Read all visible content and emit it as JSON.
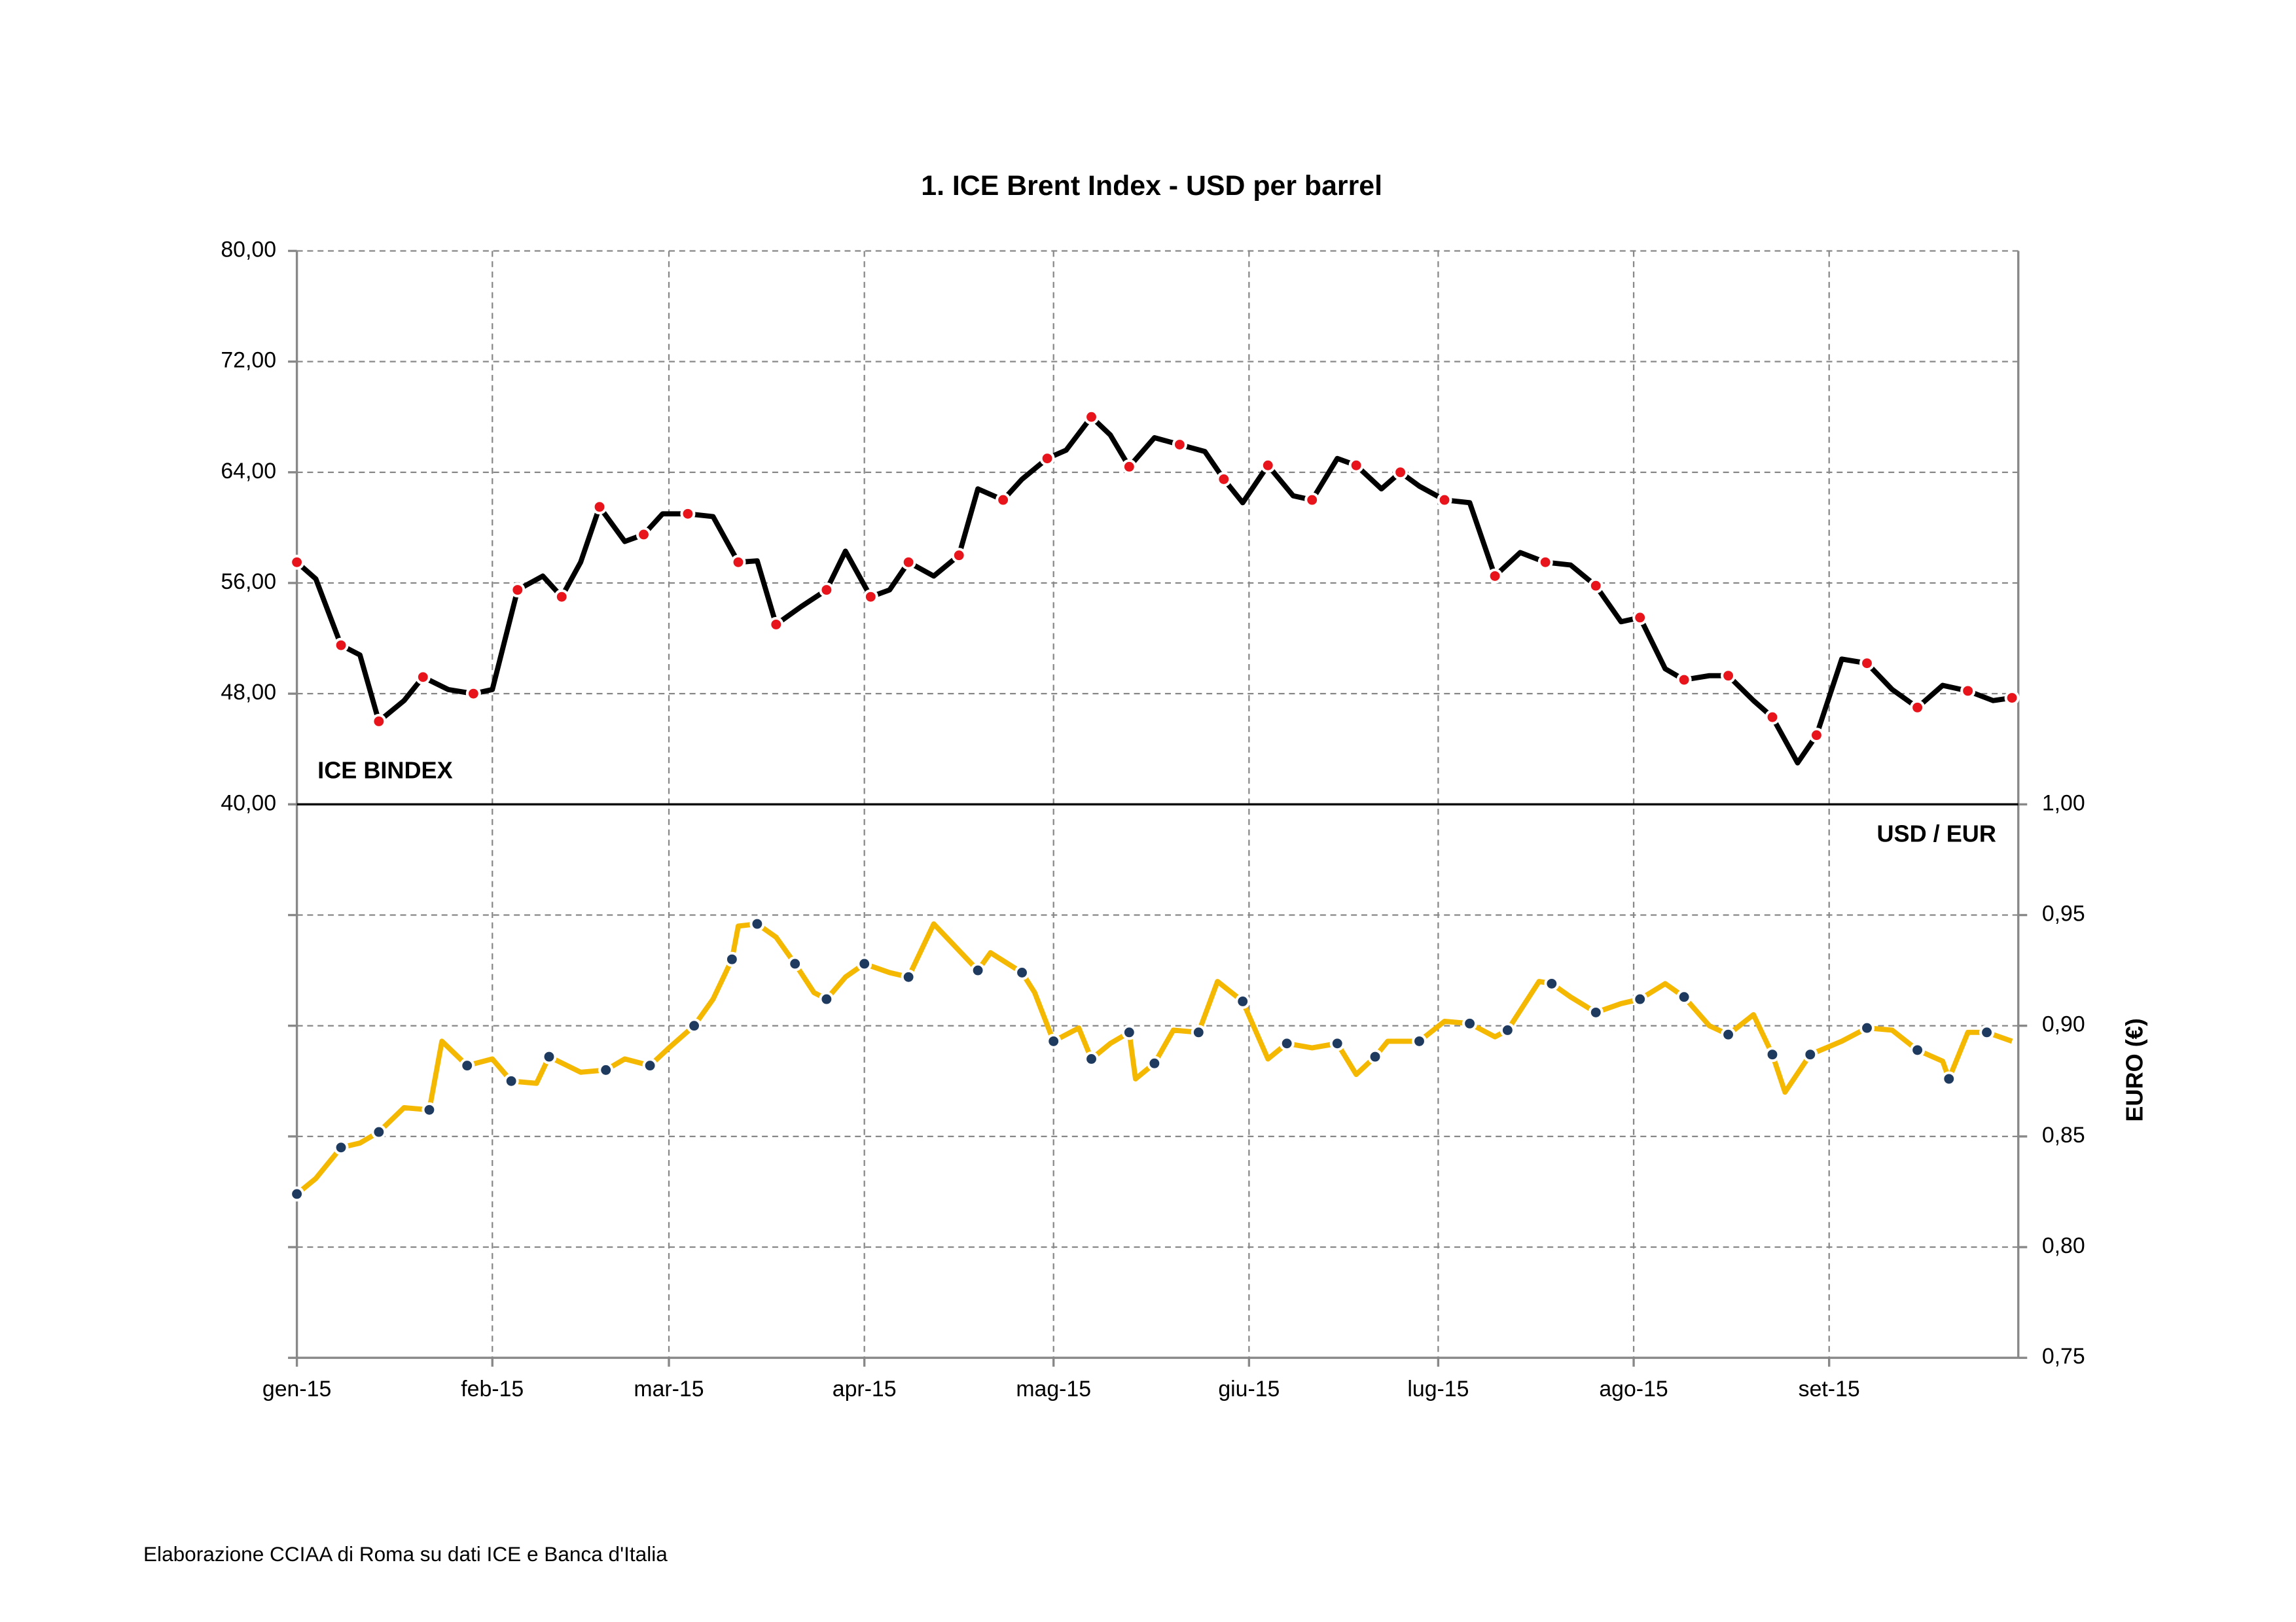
{
  "chart_data": [
    {
      "type": "line",
      "title": "1. ICE Brent Index - USD per barrel",
      "source": "Elaborazione CCIAA di Roma su dati ICE e Banca d'Italia",
      "xlim": [
        0,
        273
      ],
      "ylim": [
        40,
        80
      ],
      "yticks": [
        {
          "value": 40,
          "label": "40,00"
        },
        {
          "value": 48,
          "label": "48,00"
        },
        {
          "value": 56,
          "label": "56,00"
        },
        {
          "value": 64,
          "label": "64,00"
        },
        {
          "value": 72,
          "label": "72,00"
        },
        {
          "value": 80,
          "label": "80,00"
        }
      ],
      "grid": true,
      "series": [
        {
          "name": "ICE BINDEX",
          "color": "#000000",
          "marker_color": "#e8141b",
          "x": [
            0,
            3,
            7,
            10,
            13,
            17,
            20,
            24,
            28,
            31,
            35,
            39,
            42,
            45,
            48,
            52,
            55,
            58,
            62,
            66,
            70,
            73,
            76,
            80,
            84,
            87,
            91,
            94,
            97,
            101,
            105,
            108,
            112,
            115,
            119,
            122,
            126,
            129,
            132,
            136,
            140,
            144,
            147,
            150,
            154,
            158,
            161,
            165,
            168,
            172,
            175,
            178,
            182,
            186,
            190,
            194,
            198,
            202,
            206,
            210,
            213,
            217,
            220,
            224,
            227,
            231,
            234,
            238,
            241,
            245,
            249,
            253,
            257,
            261,
            265,
            269,
            272
          ],
          "values": [
            57.5,
            56.3,
            51.5,
            50.8,
            46,
            47.5,
            49.2,
            48.3,
            48,
            48.3,
            55.5,
            56.5,
            55,
            57.5,
            61.5,
            59,
            59.5,
            61,
            61,
            60.8,
            57.5,
            57.6,
            53,
            54.3,
            55.5,
            58.3,
            55,
            55.5,
            57.5,
            56.5,
            58,
            62.8,
            62,
            63.5,
            65,
            65.6,
            68,
            66.7,
            64.4,
            66.5,
            66,
            65.5,
            63.5,
            61.8,
            64.5,
            62.3,
            62,
            65,
            64.5,
            62.8,
            64,
            63,
            62,
            61.8,
            56.5,
            58.2,
            57.5,
            57.3,
            55.8,
            53.2,
            53.5,
            49.8,
            49,
            49.3,
            49.3,
            47.5,
            46.3,
            43,
            45,
            50.5,
            50.2,
            48.3,
            47,
            48.6,
            48.2,
            47.5,
            47.7
          ]
        }
      ]
    },
    {
      "type": "line",
      "xlim": [
        0,
        273
      ],
      "xticks": [
        {
          "value": 0,
          "label": "gen-15"
        },
        {
          "value": 31,
          "label": "feb-15"
        },
        {
          "value": 59,
          "label": "mar-15"
        },
        {
          "value": 90,
          "label": "apr-15"
        },
        {
          "value": 120,
          "label": "mag-15"
        },
        {
          "value": 151,
          "label": "giu-15"
        },
        {
          "value": 181,
          "label": "lug-15"
        },
        {
          "value": 212,
          "label": "ago-15"
        },
        {
          "value": 243,
          "label": "set-15"
        }
      ],
      "y2lim": [
        0.75,
        1.0
      ],
      "y2ticks": [
        {
          "value": 0.75,
          "label": "0,75"
        },
        {
          "value": 0.8,
          "label": "0,80"
        },
        {
          "value": 0.85,
          "label": "0,85"
        },
        {
          "value": 0.9,
          "label": "0,90"
        },
        {
          "value": 0.95,
          "label": "0,95"
        },
        {
          "value": 1.0,
          "label": "1,00"
        }
      ],
      "y2label": "EURO  (€)",
      "grid": true,
      "series": [
        {
          "name": "USD / EUR",
          "axis": "y2",
          "color": "#f5b800",
          "marker_color": "#1f3a5f",
          "x": [
            0,
            3,
            7,
            10,
            13,
            17,
            21,
            23,
            27,
            31,
            34,
            38,
            40,
            45,
            49,
            52,
            56,
            59,
            63,
            66,
            69,
            70,
            73,
            76,
            79,
            82,
            84,
            87,
            90,
            94,
            97,
            101,
            108,
            110,
            115,
            117,
            120,
            124,
            126,
            129,
            132,
            133,
            136,
            139,
            143,
            146,
            150,
            154,
            157,
            161,
            165,
            168,
            171,
            173,
            178,
            182,
            186,
            190,
            192,
            197,
            199,
            202,
            206,
            210,
            213,
            217,
            220,
            224,
            227,
            231,
            234,
            236,
            240,
            245,
            249,
            253,
            257,
            261,
            262,
            265,
            268,
            272
          ],
          "values": [
            0.824,
            0.831,
            0.845,
            0.847,
            0.852,
            0.863,
            0.862,
            0.893,
            0.882,
            0.885,
            0.875,
            0.874,
            0.886,
            0.879,
            0.88,
            0.885,
            0.882,
            0.89,
            0.9,
            0.912,
            0.93,
            0.945,
            0.946,
            0.94,
            0.928,
            0.915,
            0.912,
            0.922,
            0.928,
            0.924,
            0.922,
            0.946,
            0.925,
            0.933,
            0.924,
            0.915,
            0.893,
            0.899,
            0.885,
            0.892,
            0.897,
            0.876,
            0.883,
            0.898,
            0.897,
            0.92,
            0.911,
            0.885,
            0.892,
            0.89,
            0.892,
            0.878,
            0.886,
            0.893,
            0.893,
            0.902,
            0.901,
            0.895,
            0.898,
            0.92,
            0.919,
            0.913,
            0.906,
            0.91,
            0.912,
            0.919,
            0.913,
            0.9,
            0.896,
            0.905,
            0.887,
            0.87,
            0.887,
            0.893,
            0.899,
            0.898,
            0.889,
            0.884,
            0.876,
            0.897,
            0.897,
            0.893
          ]
        }
      ]
    }
  ]
}
